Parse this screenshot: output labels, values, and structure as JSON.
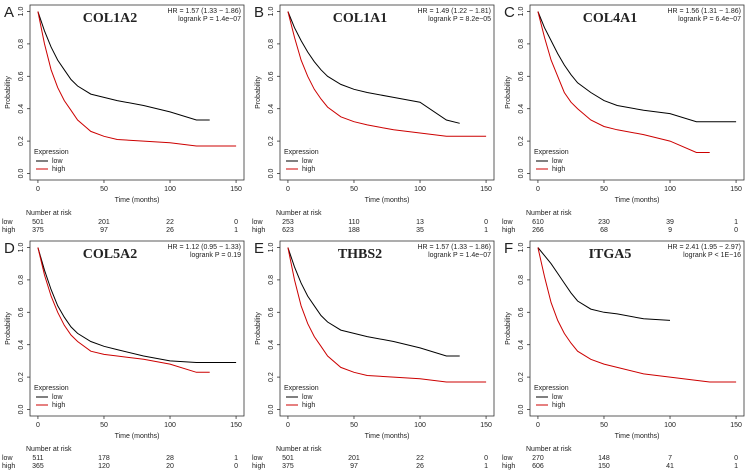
{
  "chart_data": [
    {
      "type": "line",
      "panel_label": "A",
      "title": "COL1A2",
      "annotations": [
        "HR = 1.57 (1.33 − 1.86)",
        "logrank P = 1.4e−07"
      ],
      "x_label": "Time (months)",
      "y_label": "Probability",
      "legend_title": "Expression",
      "risk_title": "Number at risk",
      "x": [
        0,
        5,
        10,
        15,
        20,
        25,
        30,
        40,
        50,
        60,
        80,
        100,
        120,
        130,
        150
      ],
      "series": [
        {
          "name": "low",
          "color": "#000000",
          "values": [
            1,
            0.88,
            0.78,
            0.7,
            0.64,
            0.58,
            0.54,
            0.49,
            0.47,
            0.45,
            0.42,
            0.38,
            0.33,
            0.33,
            null
          ],
          "at_risk": [
            501,
            201,
            22,
            0
          ]
        },
        {
          "name": "high",
          "color": "#cc0000",
          "values": [
            1,
            0.8,
            0.64,
            0.53,
            0.45,
            0.39,
            0.33,
            0.26,
            0.23,
            0.21,
            0.2,
            0.19,
            0.17,
            0.17,
            0.17
          ],
          "at_risk": [
            375,
            97,
            26,
            1
          ]
        }
      ],
      "xlim": [
        -6,
        156
      ],
      "ylim": [
        -0.04,
        1.04
      ],
      "xticks": [
        0,
        50,
        100,
        150
      ],
      "yticks": [
        {
          "value": 0,
          "label": "0.0"
        },
        {
          "value": 0.2,
          "label": "0.2"
        },
        {
          "value": 0.4,
          "label": "0.4"
        },
        {
          "value": 0.6,
          "label": "0.6"
        },
        {
          "value": 0.8,
          "label": "0.8"
        },
        {
          "value": 1,
          "label": "1.0"
        }
      ]
    },
    {
      "type": "line",
      "panel_label": "B",
      "title": "COL1A1",
      "annotations": [
        "HR = 1.49 (1.22 − 1.81)",
        "logrank P = 8.2e−05"
      ],
      "x_label": "Time (months)",
      "y_label": "Probability",
      "legend_title": "Expression",
      "risk_title": "Number at risk",
      "x": [
        0,
        5,
        10,
        15,
        20,
        25,
        30,
        40,
        50,
        60,
        80,
        100,
        120,
        130,
        150
      ],
      "series": [
        {
          "name": "low",
          "color": "#000000",
          "values": [
            1,
            0.9,
            0.82,
            0.75,
            0.69,
            0.64,
            0.6,
            0.55,
            0.52,
            0.5,
            0.47,
            0.44,
            0.33,
            0.31,
            null
          ],
          "at_risk": [
            253,
            110,
            13,
            0
          ]
        },
        {
          "name": "high",
          "color": "#cc0000",
          "values": [
            1,
            0.84,
            0.7,
            0.6,
            0.52,
            0.46,
            0.41,
            0.35,
            0.32,
            0.3,
            0.27,
            0.25,
            0.23,
            0.23,
            0.23
          ],
          "at_risk": [
            623,
            188,
            35,
            1
          ]
        }
      ],
      "xlim": [
        -6,
        156
      ],
      "ylim": [
        -0.04,
        1.04
      ],
      "xticks": [
        0,
        50,
        100,
        150
      ],
      "yticks": [
        {
          "value": 0,
          "label": "0.0"
        },
        {
          "value": 0.2,
          "label": "0.2"
        },
        {
          "value": 0.4,
          "label": "0.4"
        },
        {
          "value": 0.6,
          "label": "0.6"
        },
        {
          "value": 0.8,
          "label": "0.8"
        },
        {
          "value": 1,
          "label": "1.0"
        }
      ]
    },
    {
      "type": "line",
      "panel_label": "C",
      "title": "COL4A1",
      "annotations": [
        "HR = 1.56 (1.31 − 1.86)",
        "logrank P = 6.4e−07"
      ],
      "x_label": "Time (months)",
      "y_label": "Probability",
      "legend_title": "Expression",
      "risk_title": "Number at risk",
      "x": [
        0,
        5,
        10,
        15,
        20,
        25,
        30,
        40,
        50,
        60,
        80,
        100,
        120,
        130,
        150
      ],
      "series": [
        {
          "name": "low",
          "color": "#000000",
          "values": [
            1,
            0.9,
            0.82,
            0.74,
            0.67,
            0.61,
            0.56,
            0.5,
            0.45,
            0.42,
            0.39,
            0.37,
            0.32,
            0.32,
            0.32
          ],
          "at_risk": [
            610,
            230,
            39,
            1
          ]
        },
        {
          "name": "high",
          "color": "#cc0000",
          "values": [
            1,
            0.84,
            0.7,
            0.6,
            0.5,
            0.44,
            0.4,
            0.33,
            0.29,
            0.27,
            0.24,
            0.2,
            0.13,
            0.13,
            null
          ],
          "at_risk": [
            266,
            68,
            9,
            0
          ]
        }
      ],
      "xlim": [
        -6,
        156
      ],
      "ylim": [
        -0.04,
        1.04
      ],
      "xticks": [
        0,
        50,
        100,
        150
      ],
      "yticks": [
        {
          "value": 0,
          "label": "0.0"
        },
        {
          "value": 0.2,
          "label": "0.2"
        },
        {
          "value": 0.4,
          "label": "0.4"
        },
        {
          "value": 0.6,
          "label": "0.6"
        },
        {
          "value": 0.8,
          "label": "0.8"
        },
        {
          "value": 1,
          "label": "1.0"
        }
      ]
    },
    {
      "type": "line",
      "panel_label": "D",
      "title": "COL5A2",
      "annotations": [
        "HR = 1.12 (0.95 − 1.33)",
        "logrank P = 0.19"
      ],
      "x_label": "Time (months)",
      "y_label": "Probability",
      "legend_title": "Expression",
      "risk_title": "Number at risk",
      "x": [
        0,
        5,
        10,
        15,
        20,
        25,
        30,
        40,
        50,
        60,
        80,
        100,
        120,
        130,
        150
      ],
      "series": [
        {
          "name": "low",
          "color": "#000000",
          "values": [
            1,
            0.86,
            0.74,
            0.64,
            0.57,
            0.51,
            0.47,
            0.42,
            0.39,
            0.37,
            0.33,
            0.3,
            0.29,
            0.29,
            0.29
          ],
          "at_risk": [
            511,
            178,
            28,
            1
          ]
        },
        {
          "name": "high",
          "color": "#cc0000",
          "values": [
            1,
            0.83,
            0.7,
            0.6,
            0.52,
            0.46,
            0.42,
            0.36,
            0.34,
            0.33,
            0.31,
            0.28,
            0.23,
            0.23,
            null
          ],
          "at_risk": [
            365,
            120,
            20,
            0
          ]
        }
      ],
      "xlim": [
        -6,
        156
      ],
      "ylim": [
        -0.04,
        1.04
      ],
      "xticks": [
        0,
        50,
        100,
        150
      ],
      "yticks": [
        {
          "value": 0,
          "label": "0.0"
        },
        {
          "value": 0.2,
          "label": "0.2"
        },
        {
          "value": 0.4,
          "label": "0.4"
        },
        {
          "value": 0.6,
          "label": "0.6"
        },
        {
          "value": 0.8,
          "label": "0.8"
        },
        {
          "value": 1,
          "label": "1.0"
        }
      ]
    },
    {
      "type": "line",
      "panel_label": "E",
      "title": "THBS2",
      "annotations": [
        "HR = 1.57 (1.33 − 1.86)",
        "logrank P = 1.4e−07"
      ],
      "x_label": "Time (months)",
      "y_label": "Probability",
      "legend_title": "Expression",
      "risk_title": "Number at risk",
      "x": [
        0,
        5,
        10,
        15,
        20,
        25,
        30,
        40,
        50,
        60,
        80,
        100,
        120,
        130,
        150
      ],
      "series": [
        {
          "name": "low",
          "color": "#000000",
          "values": [
            1,
            0.88,
            0.78,
            0.7,
            0.64,
            0.58,
            0.54,
            0.49,
            0.47,
            0.45,
            0.42,
            0.38,
            0.33,
            0.33,
            null
          ],
          "at_risk": [
            501,
            201,
            22,
            0
          ]
        },
        {
          "name": "high",
          "color": "#cc0000",
          "values": [
            1,
            0.8,
            0.64,
            0.53,
            0.45,
            0.39,
            0.33,
            0.26,
            0.23,
            0.21,
            0.2,
            0.19,
            0.17,
            0.17,
            0.17
          ],
          "at_risk": [
            375,
            97,
            26,
            1
          ]
        }
      ],
      "xlim": [
        -6,
        156
      ],
      "ylim": [
        -0.04,
        1.04
      ],
      "xticks": [
        0,
        50,
        100,
        150
      ],
      "yticks": [
        {
          "value": 0,
          "label": "0.0"
        },
        {
          "value": 0.2,
          "label": "0.2"
        },
        {
          "value": 0.4,
          "label": "0.4"
        },
        {
          "value": 0.6,
          "label": "0.6"
        },
        {
          "value": 0.8,
          "label": "0.8"
        },
        {
          "value": 1,
          "label": "1.0"
        }
      ]
    },
    {
      "type": "line",
      "panel_label": "F",
      "title": "ITGA5",
      "annotations": [
        "HR = 2.41 (1.95 − 2.97)",
        "logrank P < 1E−16"
      ],
      "x_label": "Time (months)",
      "y_label": "Probability",
      "legend_title": "Expression",
      "risk_title": "Number at risk",
      "x": [
        0,
        5,
        10,
        15,
        20,
        25,
        30,
        40,
        50,
        60,
        80,
        100,
        120,
        130,
        150
      ],
      "series": [
        {
          "name": "low",
          "color": "#000000",
          "values": [
            1,
            0.95,
            0.9,
            0.84,
            0.78,
            0.72,
            0.67,
            0.62,
            0.6,
            0.59,
            0.56,
            0.55,
            null,
            null,
            null
          ],
          "at_risk": [
            270,
            148,
            7,
            0
          ]
        },
        {
          "name": "high",
          "color": "#cc0000",
          "values": [
            1,
            0.82,
            0.66,
            0.55,
            0.47,
            0.41,
            0.36,
            0.31,
            0.28,
            0.26,
            0.22,
            0.2,
            0.18,
            0.17,
            0.17
          ],
          "at_risk": [
            606,
            150,
            41,
            1
          ]
        }
      ],
      "xlim": [
        -6,
        156
      ],
      "ylim": [
        -0.04,
        1.04
      ],
      "xticks": [
        0,
        50,
        100,
        150
      ],
      "yticks": [
        {
          "value": 0,
          "label": "0.0"
        },
        {
          "value": 0.2,
          "label": "0.2"
        },
        {
          "value": 0.4,
          "label": "0.4"
        },
        {
          "value": 0.6,
          "label": "0.6"
        },
        {
          "value": 0.8,
          "label": "0.8"
        },
        {
          "value": 1,
          "label": "1.0"
        }
      ]
    }
  ]
}
